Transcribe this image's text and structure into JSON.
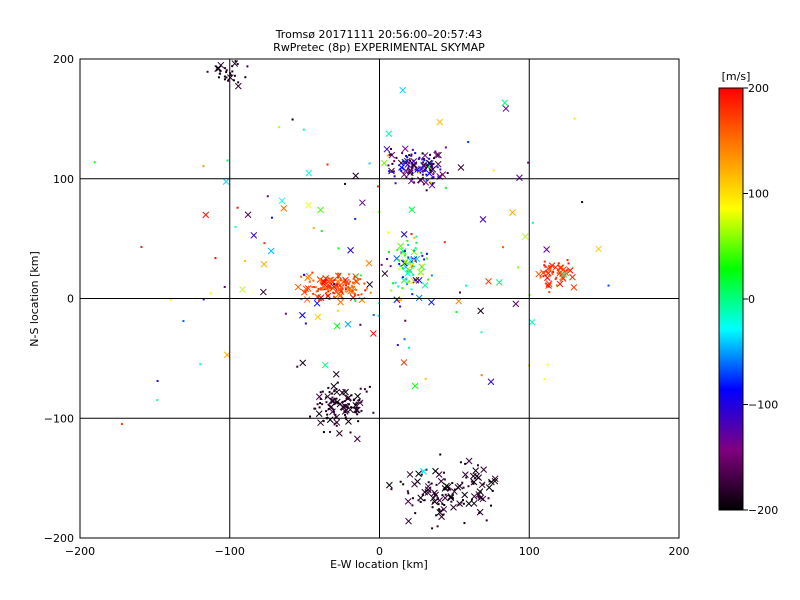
{
  "chart_data": {
    "type": "scatter",
    "title": "Tromsø 20171111 20:56:00–20:57:43",
    "subtitle": "RwPretec (8p) EXPERIMENTAL SKYMAP",
    "xlabel": "E-W location [km]",
    "ylabel": "N-S location [km]",
    "xlim": [
      -200,
      200
    ],
    "ylim": [
      -200,
      200
    ],
    "x_ticks": [
      -200,
      -100,
      0,
      100,
      200
    ],
    "y_ticks": [
      -200,
      -100,
      0,
      100,
      200
    ],
    "grid": true,
    "colorbar": {
      "label": "[m/s]",
      "range": [
        -200,
        200
      ],
      "ticks": [
        200,
        100,
        0,
        -100,
        -200
      ],
      "colors": [
        "#000000",
        "#800080",
        "#0000ff",
        "#00ffff",
        "#00ff00",
        "#ffff00",
        "#ff8000",
        "#ff0000"
      ]
    },
    "markers": [
      "x",
      "dot"
    ],
    "clusters": [
      {
        "center": [
          -104,
          188
        ],
        "spread": [
          12,
          8
        ],
        "count": 30,
        "velocity_range": [
          -200,
          -170
        ]
      },
      {
        "center": [
          25,
          110
        ],
        "spread": [
          18,
          14
        ],
        "count": 120,
        "velocity_range": [
          -200,
          -60
        ]
      },
      {
        "center": [
          -30,
          10
        ],
        "spread": [
          18,
          9
        ],
        "count": 140,
        "velocity_range": [
          140,
          200
        ]
      },
      {
        "center": [
          20,
          25
        ],
        "spread": [
          12,
          25
        ],
        "count": 80,
        "velocity_range": [
          -120,
          120
        ]
      },
      {
        "center": [
          118,
          20
        ],
        "spread": [
          10,
          12
        ],
        "count": 50,
        "velocity_range": [
          150,
          200
        ]
      },
      {
        "center": [
          -25,
          -90
        ],
        "spread": [
          18,
          18
        ],
        "count": 110,
        "velocity_range": [
          -200,
          -170
        ]
      },
      {
        "center": [
          45,
          -160
        ],
        "spread": [
          28,
          25
        ],
        "count": 130,
        "velocity_range": [
          -200,
          -170
        ]
      },
      {
        "center": [
          0,
          40
        ],
        "spread": [
          120,
          110
        ],
        "count": 140,
        "velocity_range": [
          -200,
          200
        ]
      }
    ]
  }
}
